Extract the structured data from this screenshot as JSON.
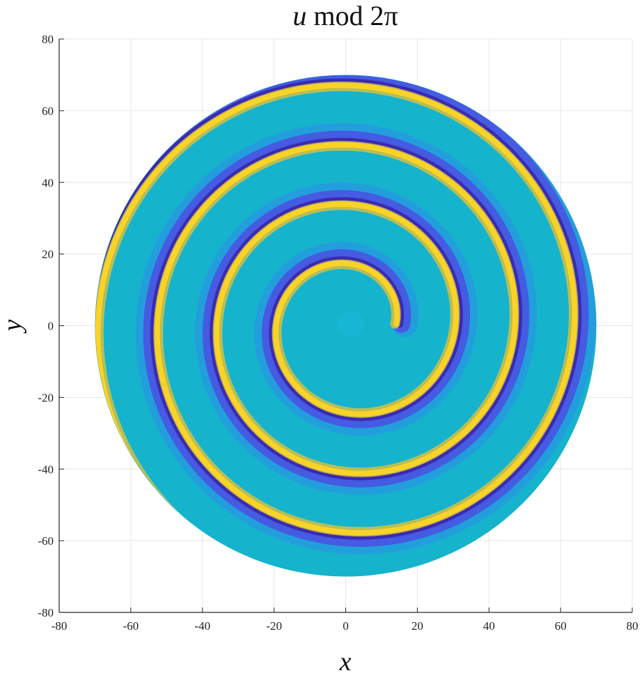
{
  "chart_data": {
    "type": "heatmap",
    "title": {
      "var": "u",
      "rest": " mod 2π"
    },
    "xlabel": "x",
    "ylabel": "y",
    "xlim": [
      -80,
      80
    ],
    "ylim": [
      -80,
      80
    ],
    "xticks": [
      -80,
      -60,
      -40,
      -20,
      0,
      20,
      40,
      60,
      80
    ],
    "yticks": [
      -80,
      -60,
      -40,
      -20,
      0,
      20,
      40,
      60,
      80
    ],
    "grid": true,
    "domain": {
      "shape": "disk",
      "center": [
        0,
        0
      ],
      "radius": 70
    },
    "spiral": {
      "center": [
        1.5,
        0.5
      ],
      "arms": 1,
      "pitch": 16.6,
      "turns": 4,
      "phase_offset": 3.3
    },
    "colormap": [
      "#3e26a8",
      "#4a4fe3",
      "#2f8de9",
      "#16b6d4",
      "#1fc0c0",
      "#6ccb7c",
      "#c7c24b",
      "#f9cf2e",
      "#f9fb15"
    ],
    "crest_color": "#f9d326",
    "trough_color": "#3d2ab0",
    "background_color": "#16b3cc"
  }
}
